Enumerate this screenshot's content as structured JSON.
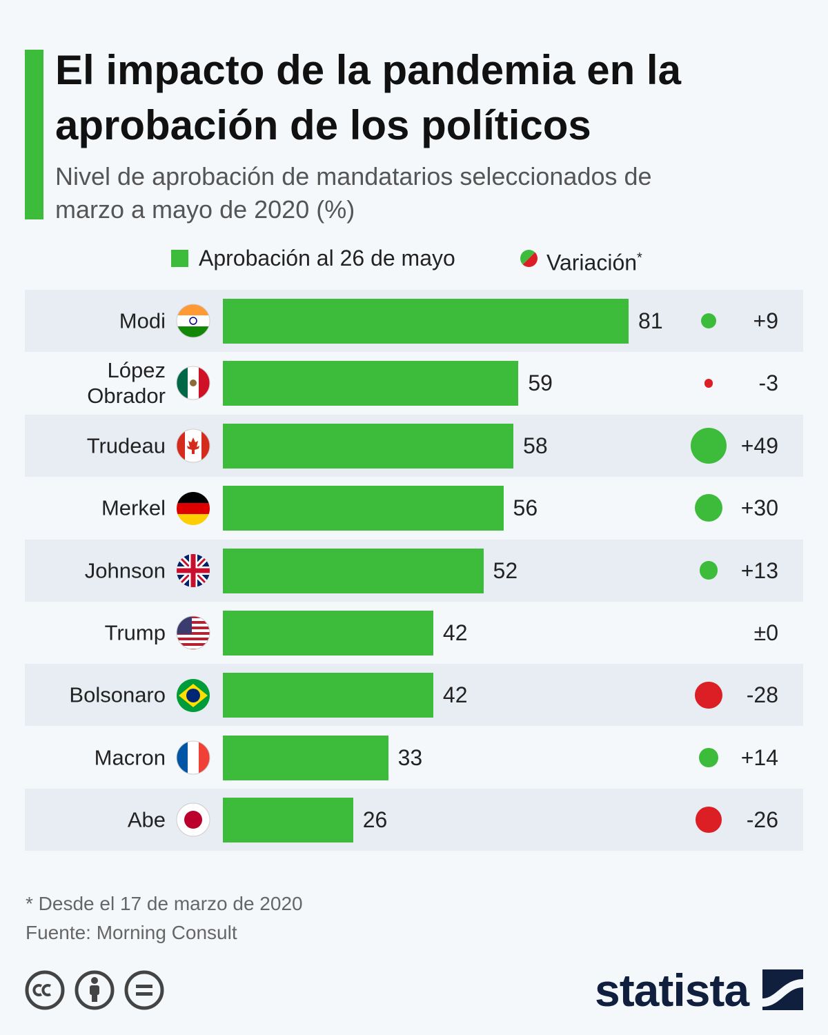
{
  "chart_data": {
    "type": "bar",
    "orientation": "horizontal",
    "title": "El impacto de la pandemia en la aprobación de los políticos",
    "subtitle": "Nivel de aprobación de mandatarios seleccionados de marzo a mayo de 2020 (%)",
    "categories": [
      "Modi",
      "López Obrador",
      "Trudeau",
      "Merkel",
      "Johnson",
      "Trump",
      "Bolsonaro",
      "Macron",
      "Abe"
    ],
    "series": [
      {
        "name": "Aprobación al 26 de mayo",
        "color": "#3dbb3a",
        "values": [
          81,
          59,
          58,
          56,
          52,
          42,
          42,
          33,
          26
        ]
      },
      {
        "name": "Variación",
        "type": "bubble",
        "values": [
          9,
          -3,
          49,
          30,
          13,
          0,
          -28,
          14,
          -26
        ],
        "value_labels": [
          "+9",
          "-3",
          "+49",
          "+30",
          "+13",
          "±0",
          "-28",
          "+14",
          "-26"
        ],
        "positive_color": "#3dbb3a",
        "negative_color": "#dc1e25"
      }
    ],
    "legend_marker": "*",
    "footnote": "* Desde el 17 de marzo de 2020",
    "source": "Fuente: Morning Consult"
  },
  "brand": "statista"
}
